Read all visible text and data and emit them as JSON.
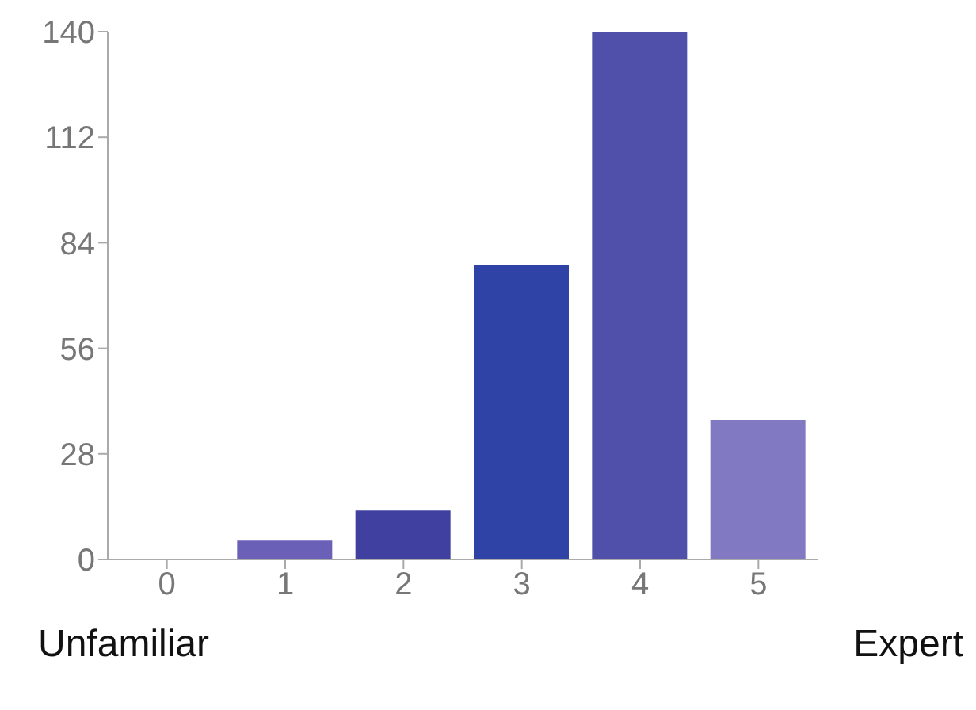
{
  "chart_data": {
    "type": "bar",
    "categories": [
      "0",
      "1",
      "2",
      "3",
      "4",
      "5"
    ],
    "values": [
      0,
      5,
      13,
      78,
      140,
      37
    ],
    "colors": [
      "#6a60b8",
      "#6a60b8",
      "#3f40a0",
      "#2f42a5",
      "#5050aa",
      "#8179c2"
    ],
    "ylim": [
      0,
      140
    ],
    "yticks": [
      0,
      28,
      56,
      84,
      112,
      140
    ],
    "grid": false,
    "annotations": [
      "Unfamiliar",
      "Expert"
    ]
  }
}
